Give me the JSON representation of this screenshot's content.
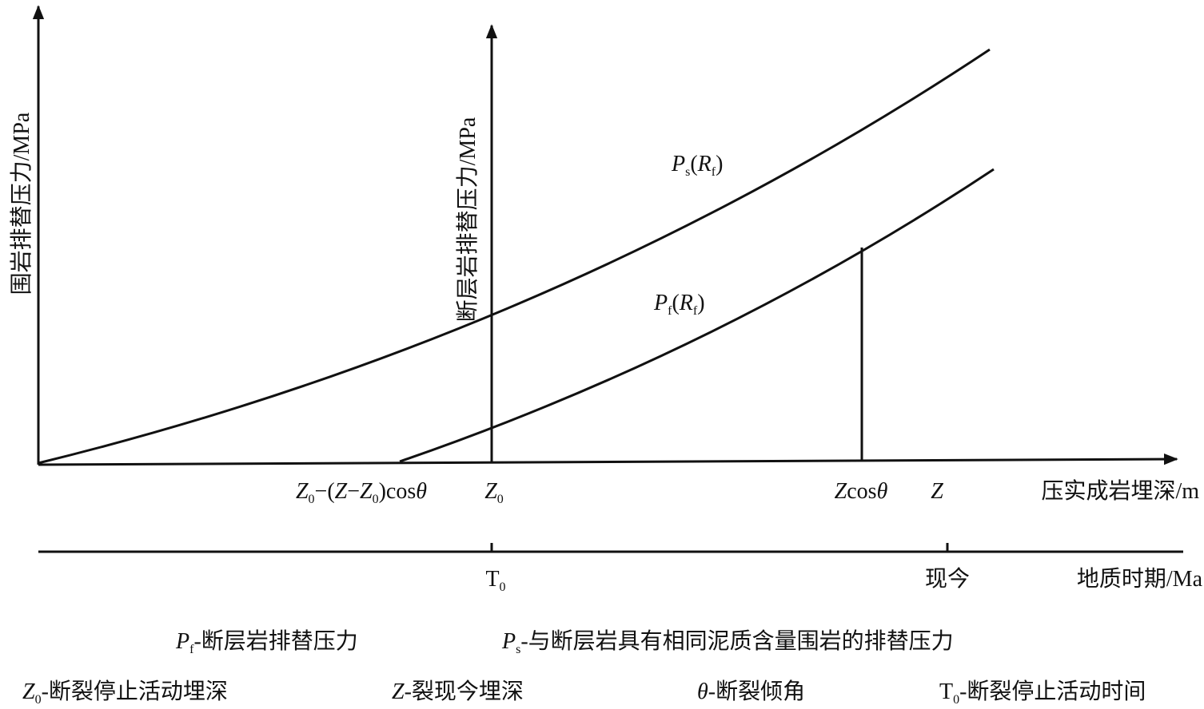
{
  "axes": {
    "y_left_label": "围岩排替压力/MPa",
    "y_middle_label": "断层岩排替压力/MPa",
    "x_label": "压实成岩埋深/m",
    "time_label": "地质时期/Ma"
  },
  "curves": [
    {
      "label": [
        {
          "text": "P",
          "italic": true
        },
        {
          "text": "s",
          "sub": true
        },
        {
          "text": "("
        },
        {
          "text": "R",
          "italic": true
        },
        {
          "text": "f",
          "sub": true
        },
        {
          "text": ")"
        }
      ]
    },
    {
      "label": [
        {
          "text": "P",
          "italic": true
        },
        {
          "text": "f",
          "sub": true
        },
        {
          "text": "("
        },
        {
          "text": "R",
          "italic": true
        },
        {
          "text": "f",
          "sub": true
        },
        {
          "text": ")"
        }
      ]
    }
  ],
  "x_marks": [
    [
      {
        "text": "Z",
        "italic": true
      },
      {
        "text": "0",
        "sub": true
      },
      {
        "text": "−("
      },
      {
        "text": "Z",
        "italic": true
      },
      {
        "text": "−"
      },
      {
        "text": "Z",
        "italic": true
      },
      {
        "text": "0",
        "sub": true
      },
      {
        "text": ")cos"
      },
      {
        "text": "θ",
        "italic": true
      }
    ],
    [
      {
        "text": "Z",
        "italic": true
      },
      {
        "text": "0",
        "sub": true
      }
    ],
    [
      {
        "text": "Z",
        "italic": true
      },
      {
        "text": "cos"
      },
      {
        "text": "θ",
        "italic": true
      }
    ],
    [
      {
        "text": "Z",
        "italic": true
      }
    ]
  ],
  "time_marks": [
    [
      {
        "text": "T"
      },
      {
        "text": "0",
        "sub": true
      }
    ],
    [
      {
        "text": "现今"
      }
    ]
  ],
  "legend": [
    [
      {
        "text": "P",
        "italic": true
      },
      {
        "text": "f",
        "sub": true
      },
      {
        "text": "-断层岩排替压力"
      }
    ],
    [
      {
        "text": "P",
        "italic": true
      },
      {
        "text": "s",
        "sub": true
      },
      {
        "text": "-与断层岩具有相同泥质含量围岩的排替压力"
      }
    ],
    [
      {
        "text": "Z",
        "italic": true
      },
      {
        "text": "0",
        "sub": true
      },
      {
        "text": "-断裂停止活动埋深"
      }
    ],
    [
      {
        "text": "Z",
        "italic": true
      },
      {
        "text": "-裂现今埋深"
      }
    ],
    [
      {
        "text": "θ",
        "italic": true
      },
      {
        "text": "-断裂倾角"
      }
    ],
    [
      {
        "text": "T"
      },
      {
        "text": "0",
        "sub": true
      },
      {
        "text": "-断裂停止活动时间"
      }
    ]
  ]
}
